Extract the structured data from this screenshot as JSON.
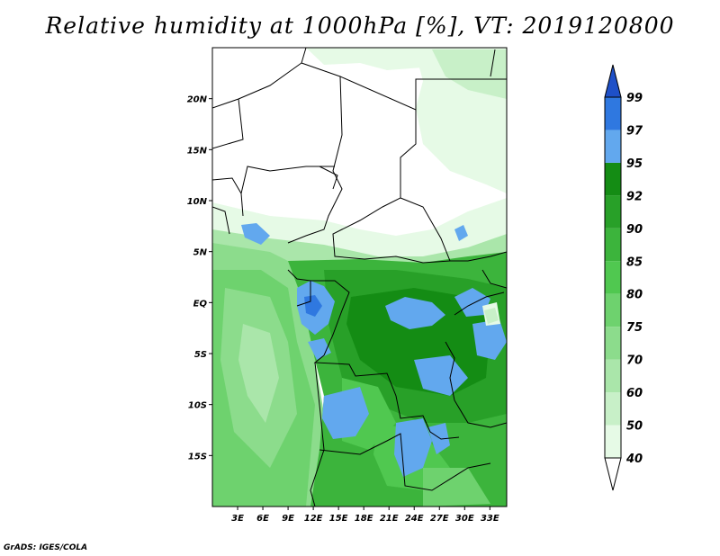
{
  "title": "Relative humidity at 1000hPa [%], VT: 2019120800",
  "credit": "GrADS: IGES/COLA",
  "map": {
    "lon_range": [
      0,
      35
    ],
    "lat_range": [
      -20,
      25
    ],
    "lat_ticks": [
      {
        "value": 20,
        "label": "20N"
      },
      {
        "value": 15,
        "label": "15N"
      },
      {
        "value": 10,
        "label": "10N"
      },
      {
        "value": 5,
        "label": "5N"
      },
      {
        "value": 0,
        "label": "EQ"
      },
      {
        "value": -5,
        "label": "5S"
      },
      {
        "value": -10,
        "label": "10S"
      },
      {
        "value": -15,
        "label": "15S"
      }
    ],
    "lon_ticks": [
      {
        "value": 3,
        "label": "3E"
      },
      {
        "value": 6,
        "label": "6E"
      },
      {
        "value": 9,
        "label": "9E"
      },
      {
        "value": 12,
        "label": "12E"
      },
      {
        "value": 15,
        "label": "15E"
      },
      {
        "value": 18,
        "label": "18E"
      },
      {
        "value": 21,
        "label": "21E"
      },
      {
        "value": 24,
        "label": "24E"
      },
      {
        "value": 27,
        "label": "27E"
      },
      {
        "value": 30,
        "label": "30E"
      },
      {
        "value": 33,
        "label": "33E"
      }
    ]
  },
  "colorbar": {
    "levels": [
      "40",
      "50",
      "60",
      "70",
      "75",
      "80",
      "85",
      "90",
      "92",
      "95",
      "97",
      "99"
    ],
    "colors": [
      "#e6fae6",
      "#c8f0c8",
      "#aae6aa",
      "#8cdc8c",
      "#6ed26e",
      "#50c850",
      "#3cb43c",
      "#28a028",
      "#148c14",
      "#62a8ee",
      "#2f78e0",
      "#1e50c8"
    ],
    "below_color": "#ffffff",
    "above_color": "#1e50c8"
  }
}
